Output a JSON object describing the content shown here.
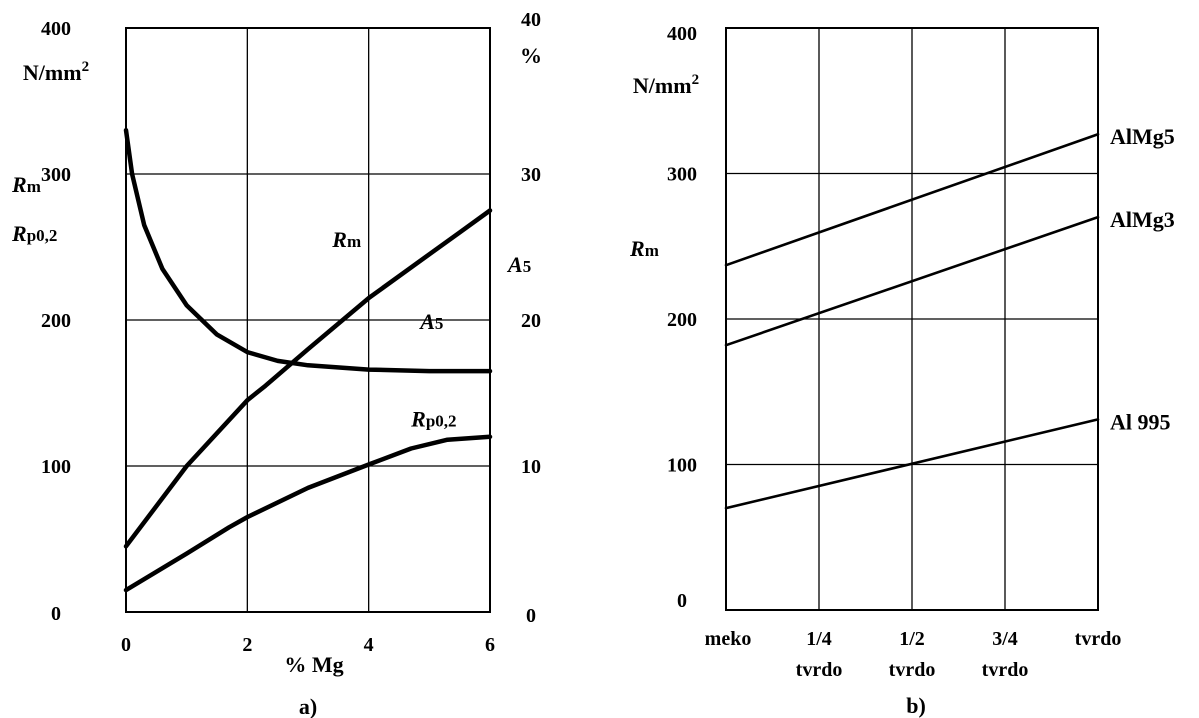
{
  "chart_data": [
    {
      "type": "line",
      "panel_label": "a)",
      "xlabel": "% Mg",
      "xlim": [
        0,
        6
      ],
      "x_ticks": [
        "0",
        "2",
        "4",
        "6"
      ],
      "left_axis": {
        "unit": "N/mm²",
        "lim": [
          0,
          400
        ],
        "ticks": [
          "0",
          "100",
          "200",
          "300",
          "400"
        ],
        "label_lines": [
          "Rm",
          "Rp0,2"
        ]
      },
      "right_axis": {
        "unit": "%",
        "lim": [
          0,
          40
        ],
        "ticks": [
          "0",
          "10",
          "20",
          "30",
          "40"
        ],
        "label": "A5"
      },
      "grid": true,
      "series": [
        {
          "name": "Rm",
          "axis": "left",
          "label_text": "Rm",
          "x": [
            0,
            1,
            2,
            2.3,
            3,
            4,
            5,
            5.5,
            6
          ],
          "y": [
            45,
            100,
            145,
            155,
            180,
            215,
            245,
            260,
            275
          ]
        },
        {
          "name": "A5",
          "axis": "right",
          "label_text": "A5",
          "x": [
            0,
            0.1,
            0.3,
            0.6,
            1,
            1.5,
            2,
            2.5,
            3,
            4,
            5,
            6
          ],
          "y": [
            33,
            30,
            26.5,
            23.5,
            21,
            19,
            17.8,
            17.2,
            16.9,
            16.6,
            16.5,
            16.5
          ]
        },
        {
          "name": "Rp0,2",
          "axis": "left",
          "label_text": "Rp0,2",
          "x": [
            0,
            1,
            1.7,
            2,
            3,
            4,
            4.7,
            5.3,
            6
          ],
          "y": [
            15,
            40,
            58,
            65,
            85,
            101,
            112,
            118,
            120
          ]
        }
      ]
    },
    {
      "type": "line",
      "panel_label": "b)",
      "categories": [
        [
          "meko"
        ],
        [
          "1/4",
          "tvrdo"
        ],
        [
          "1/2",
          "tvrdo"
        ],
        [
          "3/4",
          "tvrdo"
        ],
        [
          "tvrdo"
        ]
      ],
      "left_axis": {
        "unit": "N/mm²",
        "lim": [
          0,
          400
        ],
        "ticks": [
          "0",
          "100",
          "200",
          "300",
          "400"
        ],
        "label": "Rm"
      },
      "grid": true,
      "series": [
        {
          "name": "AlMg5",
          "start": 237,
          "end": 327
        },
        {
          "name": "AlMg3",
          "start": 182,
          "end": 270
        },
        {
          "name": "Al 995",
          "start": 70,
          "end": 131
        }
      ]
    }
  ]
}
